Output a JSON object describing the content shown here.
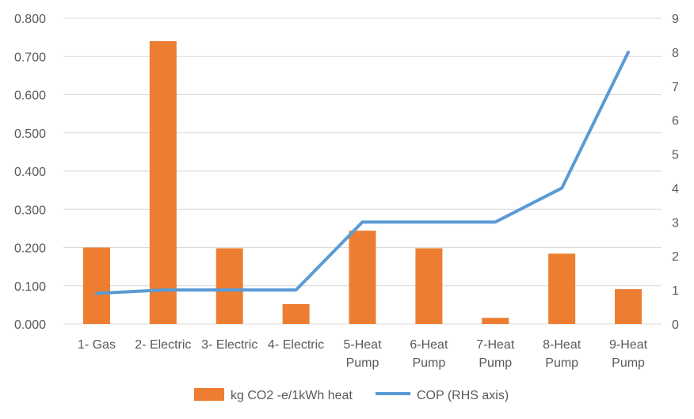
{
  "chart_data": {
    "type": "bar",
    "categories": [
      [
        "1- Gas"
      ],
      [
        "2- Electric"
      ],
      [
        "3- Electric"
      ],
      [
        "4- Electric"
      ],
      [
        "5-Heat",
        "Pump"
      ],
      [
        "6-Heat",
        "Pump"
      ],
      [
        "7-Heat",
        "Pump"
      ],
      [
        "8-Heat",
        "Pump"
      ],
      [
        "9-Heat",
        "Pump"
      ]
    ],
    "series": [
      {
        "name": "kg CO2 -e/1kWh heat",
        "type": "bar",
        "axis": "left",
        "color": "#ed7d31",
        "values": [
          0.2,
          0.74,
          0.198,
          0.052,
          0.244,
          0.198,
          0.016,
          0.184,
          0.091
        ]
      },
      {
        "name": "COP (RHS axis)",
        "type": "line",
        "axis": "right",
        "color": "#5b9bd5",
        "values": [
          0.9,
          1.0,
          1.0,
          1.0,
          3.0,
          3.0,
          3.0,
          4.0,
          8.0
        ]
      }
    ],
    "y_left": {
      "min": 0,
      "max": 0.8,
      "ticks": [
        "0.000",
        "0.100",
        "0.200",
        "0.300",
        "0.400",
        "0.500",
        "0.600",
        "0.700",
        "0.800"
      ]
    },
    "y_right": {
      "min": 0,
      "max": 9,
      "ticks": [
        "0",
        "1",
        "2",
        "3",
        "4",
        "5",
        "6",
        "7",
        "8",
        "9"
      ]
    },
    "grid": true,
    "legend": "bottom-center"
  }
}
